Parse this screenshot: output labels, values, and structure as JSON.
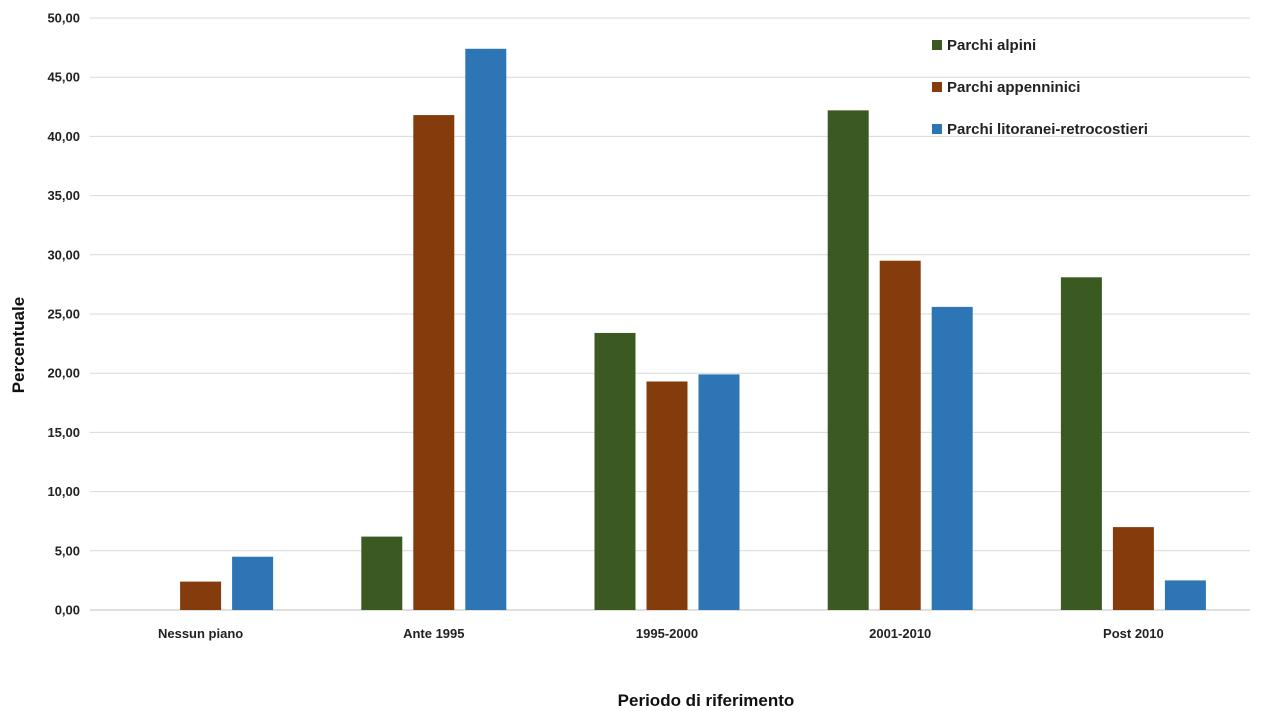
{
  "chart_data": {
    "type": "bar",
    "categories": [
      "Nessun piano",
      "Ante 1995",
      "1995-2000",
      "2001-2010",
      "Post 2010"
    ],
    "series": [
      {
        "name": "Parchi alpini",
        "color": "#3b5a22",
        "values": [
          0,
          6.2,
          23.4,
          42.2,
          28.1
        ]
      },
      {
        "name": "Parchi appenninici",
        "color": "#843c0c",
        "values": [
          2.4,
          41.8,
          19.3,
          29.5,
          7.0
        ]
      },
      {
        "name": "Parchi litoranei-retrocostieri",
        "color": "#2e75b6",
        "values": [
          4.5,
          47.4,
          19.9,
          25.6,
          2.5
        ]
      }
    ],
    "xlabel": "Periodo di riferimento",
    "ylabel": "Percentuale",
    "ylim": [
      0,
      50
    ],
    "yticks": [
      "0,00",
      "5,00",
      "10,00",
      "15,00",
      "20,00",
      "25,00",
      "30,00",
      "35,00",
      "40,00",
      "45,00",
      "50,00"
    ],
    "grid": true,
    "legend": "top-right"
  }
}
